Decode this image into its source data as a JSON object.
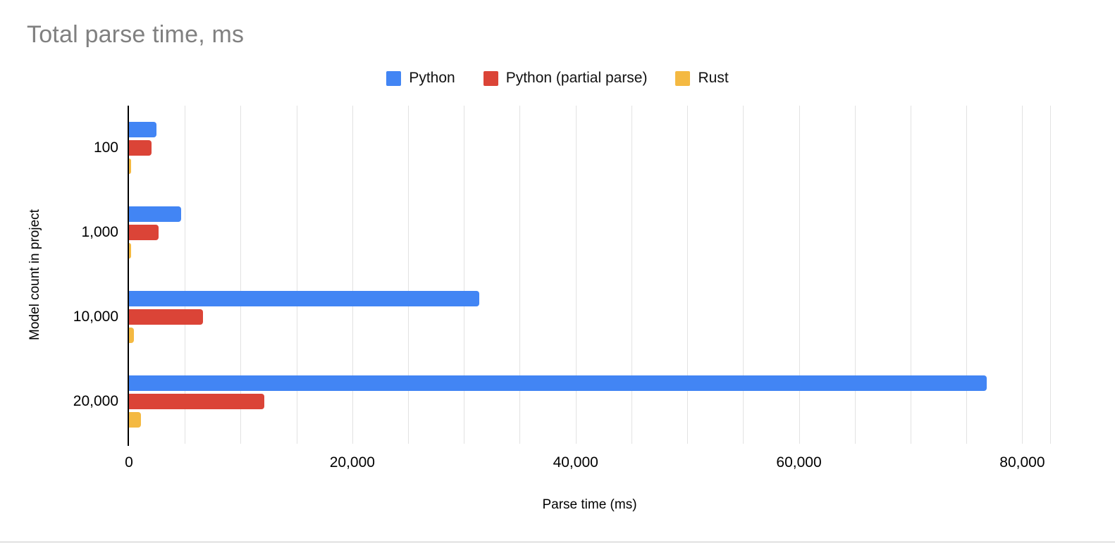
{
  "chart_data": {
    "type": "bar",
    "orientation": "horizontal",
    "title": "Total parse time, ms",
    "xlabel": "Parse time (ms)",
    "ylabel": "Model count in project",
    "categories": [
      "100",
      "1,000",
      "10,000",
      "20,000"
    ],
    "series": [
      {
        "name": "Python",
        "color": "#4285F4",
        "values": [
          2450,
          4650,
          31400,
          76800
        ]
      },
      {
        "name": "Python (partial parse)",
        "color": "#DB4437",
        "values": [
          2000,
          2650,
          6650,
          12150
        ]
      },
      {
        "name": "Rust",
        "color": "#F4B942",
        "values": [
          150,
          200,
          450,
          1050
        ]
      }
    ],
    "x_axis": {
      "min": 0,
      "max": 82500,
      "ticks": [
        {
          "value": 0,
          "label": "0"
        },
        {
          "value": 20000,
          "label": "20,000"
        },
        {
          "value": 40000,
          "label": "40,000"
        },
        {
          "value": 60000,
          "label": "60,000"
        },
        {
          "value": 80000,
          "label": "80,000"
        }
      ],
      "minor_grid_step": 5000
    },
    "grid": true,
    "legend_position": "top",
    "title_color": "#808080",
    "gridline_color": "#e2e2e2"
  }
}
